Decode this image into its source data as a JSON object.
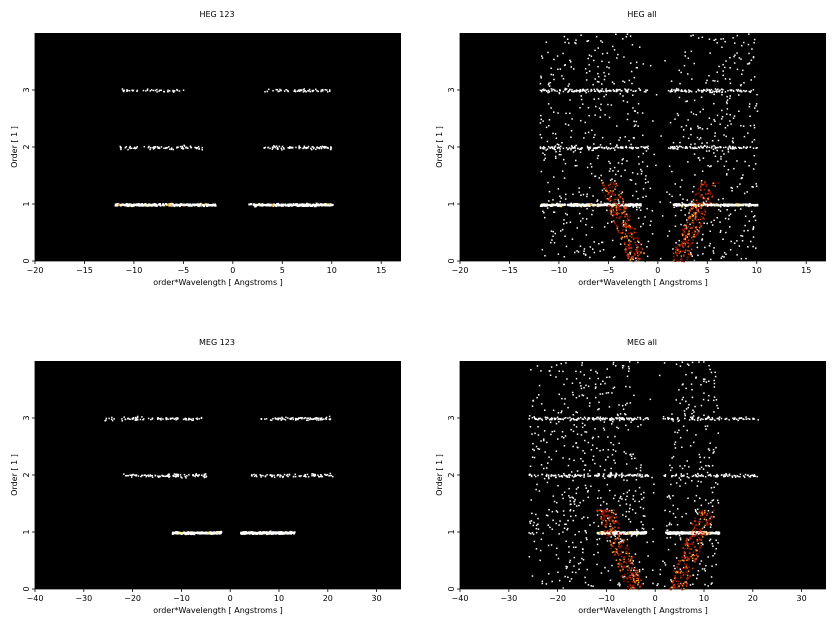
{
  "chart_data": [
    {
      "type": "heatmap",
      "title": "HEG 123",
      "xlabel": "order*Wavelength [ Angstroms ]",
      "ylabel": "Order [ 1 ]",
      "xlim": [
        -20,
        17
      ],
      "ylim": [
        0,
        4
      ],
      "x_ticks": [
        -20,
        -15,
        -10,
        -5,
        0,
        5,
        10,
        15
      ],
      "y_ticks": [
        0,
        1,
        2,
        3
      ],
      "background": "#000000",
      "colormap": [
        "#ffffff",
        "#ffff80",
        "#ffa020",
        "#e04010",
        "#a01000"
      ],
      "grid": false,
      "bands": [
        {
          "order": 1,
          "x_min": -12,
          "x_max": 10,
          "gap": [
            -1.8,
            1.5
          ],
          "density": "high"
        },
        {
          "order": 2,
          "x_min": -11.5,
          "x_max": 10,
          "gap": [
            -3,
            3
          ],
          "density": "medium"
        },
        {
          "order": 3,
          "x_min": -11.5,
          "x_max": 10,
          "gap": [
            -5,
            3
          ],
          "density": "low"
        }
      ]
    },
    {
      "type": "heatmap",
      "title": "HEG all",
      "xlabel": "order*Wavelength [ Angstroms ]",
      "ylabel": "Order [ 1 ]",
      "xlim": [
        -20,
        17
      ],
      "ylim": [
        0,
        4
      ],
      "x_ticks": [
        -20,
        -15,
        -10,
        -5,
        0,
        5,
        10,
        15
      ],
      "y_ticks": [
        0,
        1,
        2,
        3
      ],
      "background": "#000000",
      "colormap": [
        "#ffffff",
        "#ffff80",
        "#ffa020",
        "#e04010",
        "#a01000"
      ],
      "grid": false,
      "bands": [
        {
          "order": 1,
          "x_min": -12,
          "x_max": 10,
          "gap": [
            -1.8,
            1.5
          ],
          "density": "high"
        },
        {
          "order": 2,
          "x_min": -12,
          "x_max": 10,
          "gap": [
            -1,
            1
          ],
          "density": "medium"
        },
        {
          "order": 3,
          "x_min": -12,
          "x_max": 10,
          "gap": [
            -1,
            1
          ],
          "density": "medium"
        }
      ]
    },
    {
      "type": "heatmap",
      "title": "MEG 123",
      "xlabel": "order*Wavelength [ Angstroms ]",
      "ylabel": "Order [ 1 ]",
      "xlim": [
        -40,
        35
      ],
      "ylim": [
        0,
        4
      ],
      "x_ticks": [
        -40,
        -30,
        -20,
        -10,
        0,
        10,
        20,
        30
      ],
      "y_ticks": [
        0,
        1,
        2,
        3
      ],
      "background": "#000000",
      "colormap": [
        "#ffffff",
        "#ffff80",
        "#ffa020",
        "#e04010",
        "#a01000"
      ],
      "grid": false,
      "bands": [
        {
          "order": 1,
          "x_min": -12,
          "x_max": 13,
          "gap": [
            -2,
            2
          ],
          "density": "high"
        },
        {
          "order": 2,
          "x_min": -22,
          "x_max": 21,
          "gap": [
            -5,
            4
          ],
          "density": "medium"
        },
        {
          "order": 3,
          "x_min": -26,
          "x_max": 21,
          "gap": [
            -6,
            6
          ],
          "density": "medium"
        }
      ]
    },
    {
      "type": "heatmap",
      "title": "MEG all",
      "xlabel": "order*Wavelength [ Angstroms ]",
      "ylabel": "Order [ 1 ]",
      "xlim": [
        -40,
        35
      ],
      "ylim": [
        0,
        4
      ],
      "x_ticks": [
        -40,
        -30,
        -20,
        -10,
        0,
        10,
        20,
        30
      ],
      "y_ticks": [
        0,
        1,
        2,
        3
      ],
      "background": "#000000",
      "colormap": [
        "#ffffff",
        "#ffff80",
        "#ffa020",
        "#e04010",
        "#a01000"
      ],
      "grid": false,
      "bands": [
        {
          "order": 1,
          "x_min": -12,
          "x_max": 13,
          "gap": [
            -2,
            2
          ],
          "density": "high"
        },
        {
          "order": 2,
          "x_min": -26,
          "x_max": 21,
          "gap": [
            -1.5,
            1.5
          ],
          "density": "medium"
        },
        {
          "order": 3,
          "x_min": -26,
          "x_max": 21,
          "gap": [
            -1.5,
            1.5
          ],
          "density": "medium"
        }
      ]
    }
  ]
}
